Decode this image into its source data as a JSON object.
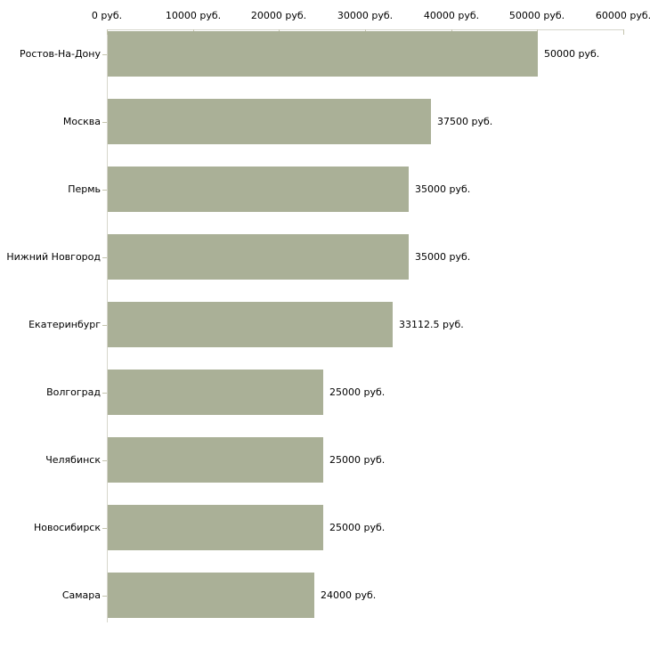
{
  "chart_data": {
    "type": "bar",
    "orientation": "horizontal",
    "title": "",
    "xlabel": "",
    "ylabel": "",
    "categories": [
      "Ростов-На-Дону",
      "Москва",
      "Пермь",
      "Нижний Новгород",
      "Екатеринбург",
      "Волгоград",
      "Челябинск",
      "Новосибирск",
      "Самара"
    ],
    "values": [
      50000,
      37500,
      35000,
      35000,
      33112.5,
      25000,
      25000,
      25000,
      24000
    ],
    "value_labels": [
      "50000 руб.",
      "37500 руб.",
      "35000 руб.",
      "35000 руб.",
      "33112.5 руб.",
      "25000 руб.",
      "25000 руб.",
      "25000 руб.",
      "24000 руб."
    ],
    "x_axis": {
      "position": "top",
      "range": [
        0,
        60000
      ],
      "ticks": [
        0,
        10000,
        20000,
        30000,
        40000,
        50000,
        60000
      ],
      "tick_labels": [
        "0 руб.",
        "10000 руб.",
        "20000 руб.",
        "30000 руб.",
        "40000 руб.",
        "50000 руб.",
        "60000 руб."
      ]
    },
    "grid": false,
    "legend": false,
    "colors": {
      "bar": "#aab097",
      "axis_line": "#d6d6cc",
      "tick": "#c4c4ae",
      "text": "#000000",
      "background": "#ffffff"
    }
  }
}
